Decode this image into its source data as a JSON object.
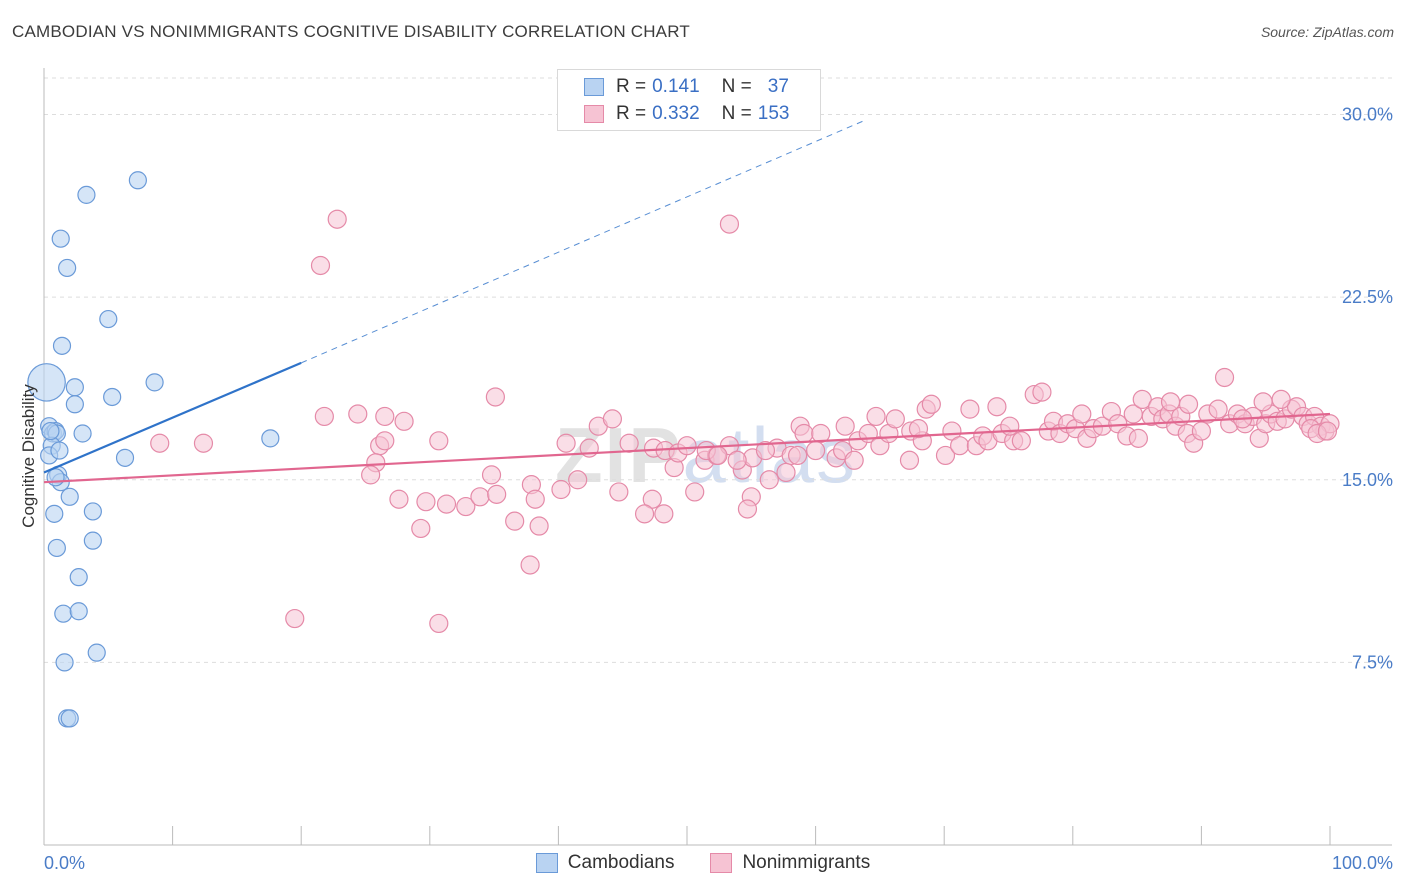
{
  "title": "CAMBODIAN VS NONIMMIGRANTS COGNITIVE DISABILITY CORRELATION CHART",
  "source": "Source: ZipAtlas.com",
  "watermark": {
    "zip": "ZIP",
    "atlas": "atlas"
  },
  "legend": {
    "rows": [
      {
        "r_label": "R =",
        "r_value": "0.141",
        "n_label": "N =",
        "n_value": "37"
      },
      {
        "r_label": "R =",
        "r_value": "0.332",
        "n_label": "N =",
        "n_value": "153"
      }
    ]
  },
  "bottom_legend": [
    "Cambodians",
    "Nonimmigrants"
  ],
  "colors": {
    "blue_fill": "#b9d3f2",
    "blue_stroke": "#6a9ad8",
    "blue_line": "#2f73c9",
    "pink_fill": "#f6c3d3",
    "pink_stroke": "#e58aa8",
    "pink_line": "#e1668f",
    "tick_text": "#4a7cc7",
    "grid": "#dddddd"
  },
  "chart_data": {
    "type": "scatter",
    "title": "CAMBODIAN VS NONIMMIGRANTS COGNITIVE DISABILITY CORRELATION CHART",
    "xlabel": "",
    "ylabel": "Cognitive Disability",
    "xlim": [
      0,
      100
    ],
    "ylim": [
      0,
      31.5
    ],
    "y_ticks": [
      7.5,
      15.0,
      22.5,
      30.0
    ],
    "y_tick_labels": [
      "7.5%",
      "15.0%",
      "22.5%",
      "30.0%"
    ],
    "x_tick_labels": [
      "0.0%",
      "100.0%"
    ],
    "x_minor_ticks": [
      0,
      10,
      20,
      30,
      40,
      50,
      60,
      70,
      80,
      90,
      100
    ],
    "series": [
      {
        "name": "Cambodians",
        "R": 0.141,
        "N": 37,
        "trend": {
          "x0": 0,
          "y0": 15.3,
          "x1": 20,
          "y1": 19.8,
          "dash_to_x": 64,
          "dash_to_y": 29.8
        },
        "points": [
          [
            0.2,
            19.0,
            2.2
          ],
          [
            7.3,
            27.3,
            1
          ],
          [
            3.3,
            26.7,
            1
          ],
          [
            1.3,
            24.9,
            1
          ],
          [
            1.8,
            23.7,
            1
          ],
          [
            5.0,
            21.6,
            1
          ],
          [
            1.4,
            20.5,
            1
          ],
          [
            2.4,
            18.8,
            1
          ],
          [
            8.6,
            19.0,
            1
          ],
          [
            5.3,
            18.4,
            1
          ],
          [
            2.4,
            18.1,
            1
          ],
          [
            0.4,
            17.2,
            1
          ],
          [
            0.7,
            16.9,
            1
          ],
          [
            0.9,
            17.0,
            1
          ],
          [
            1.0,
            16.9,
            1
          ],
          [
            3.0,
            16.9,
            1
          ],
          [
            17.6,
            16.7,
            1
          ],
          [
            0.6,
            16.4,
            1
          ],
          [
            0.4,
            16.0,
            1
          ],
          [
            6.3,
            15.9,
            1
          ],
          [
            1.1,
            15.2,
            1
          ],
          [
            1.3,
            14.9,
            1
          ],
          [
            2.0,
            14.3,
            1
          ],
          [
            0.8,
            13.6,
            1
          ],
          [
            3.8,
            13.7,
            1
          ],
          [
            3.8,
            12.5,
            1
          ],
          [
            1.0,
            12.2,
            1
          ],
          [
            2.7,
            11.0,
            1
          ],
          [
            1.5,
            9.5,
            1
          ],
          [
            2.7,
            9.6,
            1
          ],
          [
            4.1,
            7.9,
            1
          ],
          [
            1.6,
            7.5,
            1
          ],
          [
            1.8,
            5.2,
            1
          ],
          [
            2.0,
            5.2,
            1
          ],
          [
            0.5,
            17.0,
            1
          ],
          [
            1.2,
            16.2,
            1
          ],
          [
            0.9,
            15.1,
            1
          ]
        ]
      },
      {
        "name": "Nonimmigrants",
        "R": 0.332,
        "N": 153,
        "trend": {
          "x0": 0,
          "y0": 14.9,
          "x1": 100,
          "y1": 17.7
        },
        "points": [
          [
            22.8,
            25.7
          ],
          [
            53.3,
            25.5
          ],
          [
            21.5,
            23.8
          ],
          [
            35.1,
            18.4
          ],
          [
            21.8,
            17.6
          ],
          [
            24.4,
            17.7
          ],
          [
            26.5,
            17.6
          ],
          [
            28.0,
            17.4
          ],
          [
            9.0,
            16.5
          ],
          [
            12.4,
            16.5
          ],
          [
            26.1,
            16.4
          ],
          [
            26.5,
            16.6
          ],
          [
            30.7,
            16.6
          ],
          [
            25.8,
            15.7
          ],
          [
            25.4,
            15.2
          ],
          [
            34.8,
            15.2
          ],
          [
            37.9,
            14.8
          ],
          [
            27.6,
            14.2
          ],
          [
            29.7,
            14.1
          ],
          [
            32.8,
            13.9
          ],
          [
            33.9,
            14.3
          ],
          [
            31.3,
            14.0
          ],
          [
            35.2,
            14.4
          ],
          [
            38.2,
            14.2
          ],
          [
            29.3,
            13.0
          ],
          [
            36.6,
            13.3
          ],
          [
            40.2,
            14.6
          ],
          [
            38.5,
            13.1
          ],
          [
            37.8,
            11.5
          ],
          [
            19.5,
            9.3
          ],
          [
            30.7,
            9.1
          ],
          [
            42.4,
            16.3
          ],
          [
            41.5,
            15.0
          ],
          [
            40.6,
            16.5
          ],
          [
            43.1,
            17.2
          ],
          [
            44.2,
            17.5
          ],
          [
            45.5,
            16.5
          ],
          [
            47.4,
            16.3
          ],
          [
            48.3,
            16.2
          ],
          [
            49.0,
            15.5
          ],
          [
            49.3,
            16.1
          ],
          [
            47.3,
            14.2
          ],
          [
            46.7,
            13.6
          ],
          [
            44.7,
            14.5
          ],
          [
            48.2,
            13.6
          ],
          [
            50.6,
            14.5
          ],
          [
            51.4,
            15.8
          ],
          [
            52.3,
            16.0
          ],
          [
            51.5,
            16.2
          ],
          [
            53.3,
            16.4
          ],
          [
            54.3,
            15.4
          ],
          [
            55.1,
            15.9
          ],
          [
            55.0,
            14.3
          ],
          [
            56.4,
            15.0
          ],
          [
            57.0,
            16.3
          ],
          [
            56.1,
            16.2
          ],
          [
            58.1,
            16.0
          ],
          [
            58.8,
            17.2
          ],
          [
            59.1,
            16.9
          ],
          [
            60.4,
            16.9
          ],
          [
            61.6,
            15.9
          ],
          [
            62.1,
            16.2
          ],
          [
            62.3,
            17.2
          ],
          [
            63.3,
            16.6
          ],
          [
            64.1,
            16.9
          ],
          [
            65.0,
            16.4
          ],
          [
            64.7,
            17.6
          ],
          [
            65.7,
            16.9
          ],
          [
            66.2,
            17.5
          ],
          [
            67.4,
            17.0
          ],
          [
            67.3,
            15.8
          ],
          [
            68.3,
            16.6
          ],
          [
            68.6,
            17.9
          ],
          [
            69.0,
            18.1
          ],
          [
            70.1,
            16.0
          ],
          [
            70.6,
            17.0
          ],
          [
            71.2,
            16.4
          ],
          [
            72.0,
            17.9
          ],
          [
            72.5,
            16.4
          ],
          [
            73.0,
            16.8
          ],
          [
            73.4,
            16.6
          ],
          [
            74.1,
            18.0
          ],
          [
            74.5,
            16.9
          ],
          [
            75.4,
            16.6
          ],
          [
            76.0,
            16.6
          ],
          [
            75.1,
            17.2
          ],
          [
            77.0,
            18.5
          ],
          [
            77.6,
            18.6
          ],
          [
            78.1,
            17.0
          ],
          [
            78.5,
            17.4
          ],
          [
            79.0,
            16.9
          ],
          [
            79.6,
            17.3
          ],
          [
            80.2,
            17.1
          ],
          [
            80.7,
            17.7
          ],
          [
            81.1,
            16.7
          ],
          [
            81.6,
            17.1
          ],
          [
            82.3,
            17.2
          ],
          [
            83.0,
            17.8
          ],
          [
            83.5,
            17.3
          ],
          [
            84.2,
            16.8
          ],
          [
            84.7,
            17.7
          ],
          [
            85.1,
            16.7
          ],
          [
            85.4,
            18.3
          ],
          [
            86.1,
            17.6
          ],
          [
            86.6,
            18.0
          ],
          [
            87.0,
            17.5
          ],
          [
            87.5,
            17.7
          ],
          [
            88.0,
            17.2
          ],
          [
            88.4,
            17.6
          ],
          [
            88.9,
            16.9
          ],
          [
            89.4,
            16.5
          ],
          [
            90.0,
            17.0
          ],
          [
            90.5,
            17.7
          ],
          [
            91.3,
            17.9
          ],
          [
            91.8,
            19.2
          ],
          [
            92.2,
            17.3
          ],
          [
            92.8,
            17.7
          ],
          [
            93.4,
            17.3
          ],
          [
            94.0,
            17.6
          ],
          [
            94.5,
            16.7
          ],
          [
            95.0,
            17.3
          ],
          [
            95.4,
            17.7
          ],
          [
            95.9,
            17.4
          ],
          [
            96.5,
            17.5
          ],
          [
            97.0,
            17.9
          ],
          [
            97.4,
            18.0
          ],
          [
            97.9,
            17.6
          ],
          [
            98.3,
            17.3
          ],
          [
            98.8,
            17.6
          ],
          [
            99.3,
            17.2
          ],
          [
            99.6,
            17.0
          ],
          [
            100.0,
            17.3
          ],
          [
            96.2,
            18.3
          ],
          [
            94.8,
            18.2
          ],
          [
            89.0,
            18.1
          ],
          [
            87.6,
            18.2
          ],
          [
            93.2,
            17.5
          ],
          [
            98.5,
            17.1
          ],
          [
            99.0,
            16.9
          ],
          [
            99.8,
            17.0
          ],
          [
            58.6,
            16.0
          ],
          [
            57.7,
            15.3
          ],
          [
            60.0,
            16.2
          ],
          [
            52.4,
            16.0
          ],
          [
            50.0,
            16.4
          ],
          [
            53.9,
            15.8
          ],
          [
            54.7,
            13.8
          ],
          [
            63.0,
            15.8
          ],
          [
            68.0,
            17.1
          ]
        ]
      }
    ]
  }
}
